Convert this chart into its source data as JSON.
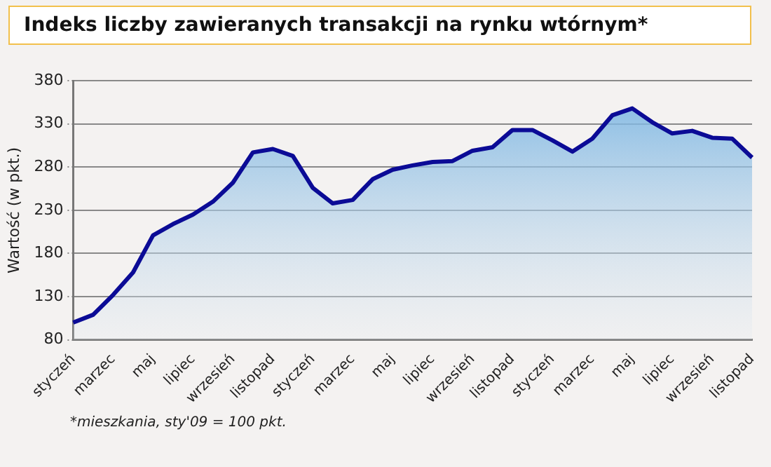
{
  "chart_data": {
    "type": "area",
    "title": "Indeks liczby zawieranych transakcji na rynku wtórnym*",
    "ylabel": "Wartość (w pkt.)",
    "categories": [
      "styczeń",
      null,
      "marzec",
      null,
      "maj",
      null,
      "lipiec",
      null,
      "wrzesień",
      null,
      "listopad",
      null,
      "styczeń",
      null,
      "marzec",
      null,
      "maj",
      null,
      "lipiec",
      null,
      "wrzesień",
      null,
      "listopad",
      null,
      "styczeń",
      null,
      "marzec",
      null,
      "maj",
      null,
      "lipiec",
      null,
      "wrzesień",
      null,
      "listopad"
    ],
    "series": [
      {
        "color": "#0b0b96",
        "values": [
          100,
          109,
          132,
          158,
          201,
          214,
          225,
          240,
          262,
          297,
          301,
          293,
          256,
          238,
          242,
          266,
          277,
          282,
          286,
          287,
          299,
          303,
          323,
          323,
          311,
          298,
          313,
          340,
          348,
          332,
          319,
          322,
          314,
          313,
          291
        ]
      }
    ],
    "ylim": [
      80,
      380
    ],
    "yticks": [
      80,
      130,
      180,
      230,
      280,
      330,
      380
    ],
    "grid": "y",
    "legend": false,
    "annotations": [
      "*mieszkania, sty'09 = 100 pkt."
    ]
  }
}
